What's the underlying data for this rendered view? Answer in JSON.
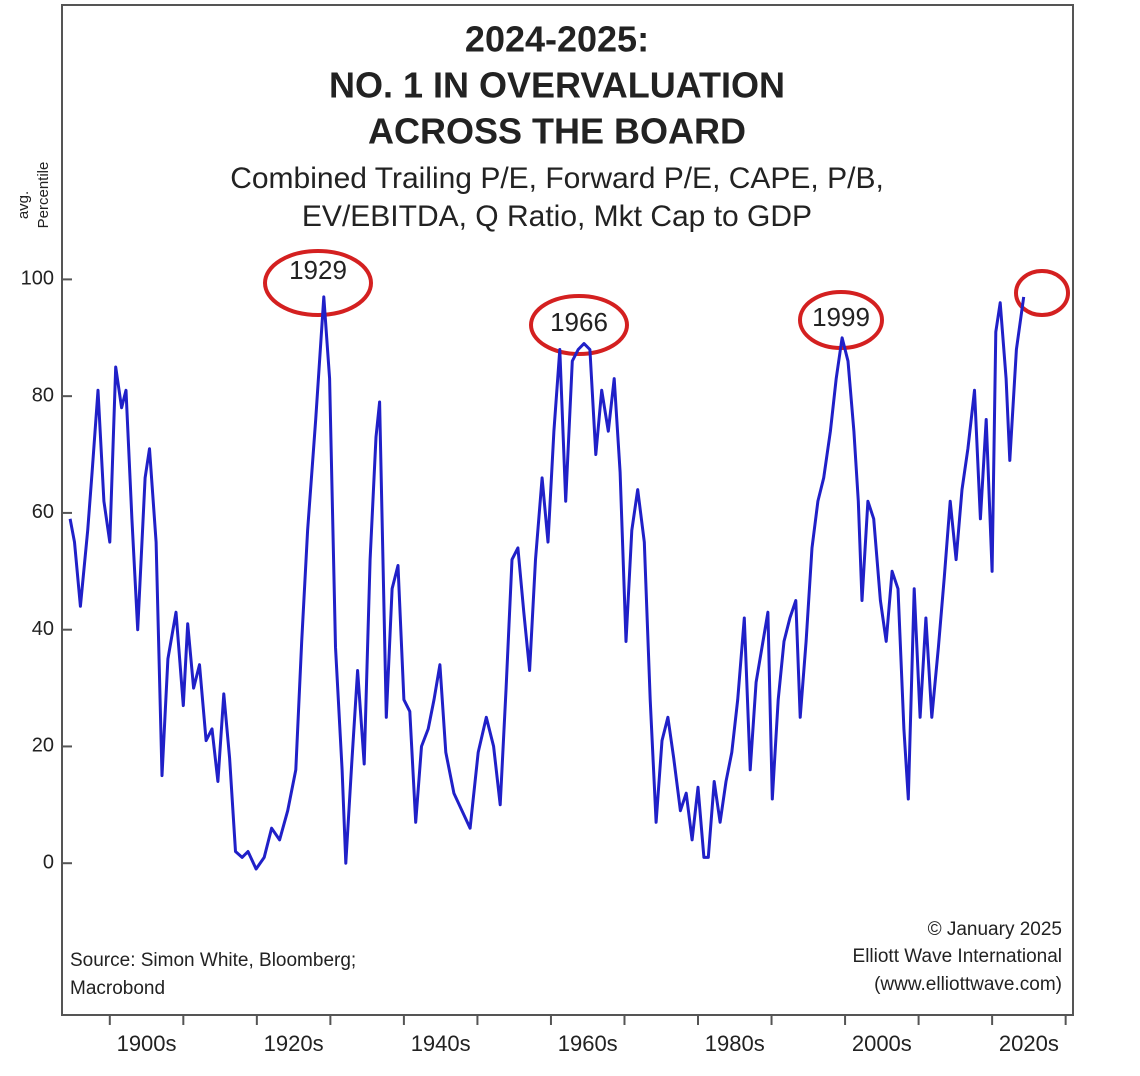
{
  "chart_data": {
    "type": "line",
    "title": [
      "2024-2025:",
      "NO. 1 IN OVERVALUATION",
      "ACROSS THE BOARD"
    ],
    "subtitle": [
      "Combined Trailing P/E, Forward P/E, CAPE, P/B,",
      "EV/EBITDA, Q Ratio, Mkt Cap to GDP"
    ],
    "ylabel": [
      "avg.",
      "Percentile"
    ],
    "annotations": [
      "1929",
      "1966",
      "1999"
    ],
    "source": [
      "Source: Simon White, Bloomberg;",
      "Macrobond"
    ],
    "credit": [
      "© January 2025",
      "Elliott Wave International",
      "(www.elliottwave.com)"
    ],
    "xlim": [
      1893.5,
      2031
    ],
    "ylim": [
      -26,
      147
    ],
    "yticks": [
      0,
      20,
      40,
      60,
      80,
      100
    ],
    "xticks": [
      {
        "value": 1905,
        "label": "1900s"
      },
      {
        "value": 1925,
        "label": "1920s"
      },
      {
        "value": 1945,
        "label": "1940s"
      },
      {
        "value": 1965,
        "label": "1960s"
      },
      {
        "value": 1985,
        "label": "1980s"
      },
      {
        "value": 2005,
        "label": "2000s"
      },
      {
        "value": 2025,
        "label": "2020s"
      }
    ],
    "xminor": [
      1900,
      1910,
      1920,
      1930,
      1940,
      1950,
      1960,
      1970,
      1980,
      1990,
      2000,
      2010,
      2020,
      2030
    ],
    "series": [
      {
        "color": "#2020c8",
        "x": [
          1894.6,
          1895.2,
          1896,
          1897,
          1897.6,
          1898.4,
          1899.2,
          1900,
          1900.8,
          1901.6,
          1902.2,
          1903,
          1903.8,
          1904.8,
          1905.4,
          1906.3,
          1907.1,
          1907.9,
          1909,
          1910,
          1910.6,
          1911.4,
          1912.2,
          1913.1,
          1913.9,
          1914.7,
          1915.5,
          1916.3,
          1917.1,
          1918,
          1918.8,
          1919.9,
          1921,
          1922,
          1923.1,
          1924.2,
          1925.3,
          1926.1,
          1926.9,
          1928,
          1929.1,
          1929.9,
          1930.7,
          1931.6,
          1932.1,
          1932.9,
          1933.7,
          1934.6,
          1935.4,
          1936.2,
          1936.7,
          1937.6,
          1938.4,
          1939.2,
          1940,
          1940.8,
          1941.6,
          1942.4,
          1943.3,
          1944.1,
          1944.9,
          1945.7,
          1946.8,
          1947.9,
          1949,
          1950.1,
          1951.2,
          1952.2,
          1953.1,
          1953.9,
          1954.7,
          1955.5,
          1956.3,
          1957.1,
          1957.9,
          1958.8,
          1959.6,
          1960.4,
          1961.2,
          1962,
          1962.9,
          1963.7,
          1964.5,
          1965.3,
          1966.1,
          1966.9,
          1967.8,
          1968.6,
          1969.4,
          1970.2,
          1971,
          1971.8,
          1972.7,
          1973.5,
          1974.3,
          1975.1,
          1975.9,
          1976.7,
          1977.6,
          1978.4,
          1979.2,
          1980,
          1980.8,
          1981.4,
          1982.2,
          1983,
          1983.8,
          1984.6,
          1985.4,
          1986.3,
          1987.1,
          1987.9,
          1988.7,
          1989.5,
          1990.1,
          1990.9,
          1991.7,
          1992.5,
          1993.3,
          1993.9,
          1994.7,
          1995.5,
          1996.3,
          1997.1,
          1998,
          1998.8,
          1999.6,
          2000.4,
          2001.2,
          2001.8,
          2002.3,
          2003.1,
          2003.9,
          2004.8,
          2005.6,
          2006.4,
          2007.2,
          2008,
          2008.6,
          2009.4,
          2010.2,
          2011,
          2011.8,
          2012.7,
          2013.5,
          2014.3,
          2015.1,
          2015.9,
          2016.7,
          2017.6,
          2018.4,
          2019.2,
          2020,
          2020.5,
          2021.1,
          2021.9,
          2022.4,
          2023.3,
          2024.3
        ],
        "values": [
          59,
          55,
          44,
          57,
          67,
          81,
          62,
          55,
          85,
          78,
          81,
          59,
          40,
          66,
          71,
          55,
          15,
          35,
          43,
          27,
          41,
          30,
          34,
          21,
          23,
          14,
          29,
          18,
          2,
          1,
          2,
          -1,
          1,
          6,
          4,
          9,
          16,
          38,
          57,
          76,
          97,
          83,
          37,
          16,
          0,
          17,
          33,
          17,
          52,
          73,
          79,
          25,
          47,
          51,
          28,
          26,
          7,
          20,
          23,
          28,
          34,
          19,
          12,
          9,
          6,
          19,
          25,
          20,
          10,
          30,
          52,
          54,
          43,
          33,
          52,
          66,
          55,
          74,
          88,
          62,
          86,
          88,
          89,
          88,
          70,
          81,
          74,
          83,
          67,
          38,
          57,
          64,
          55,
          28,
          7,
          21,
          25,
          18,
          9,
          12,
          4,
          13,
          1,
          1,
          14,
          7,
          14,
          19,
          28,
          42,
          16,
          31,
          37,
          43,
          11,
          28,
          38,
          42,
          45,
          25,
          38,
          54,
          62,
          66,
          74,
          83,
          90,
          86,
          74,
          62,
          45,
          62,
          59,
          45,
          38,
          50,
          47,
          23,
          11,
          47,
          25,
          42,
          25,
          37,
          49,
          62,
          52,
          64,
          71,
          81,
          59,
          76,
          50,
          91,
          96,
          83,
          69,
          88,
          97
        ]
      }
    ]
  }
}
